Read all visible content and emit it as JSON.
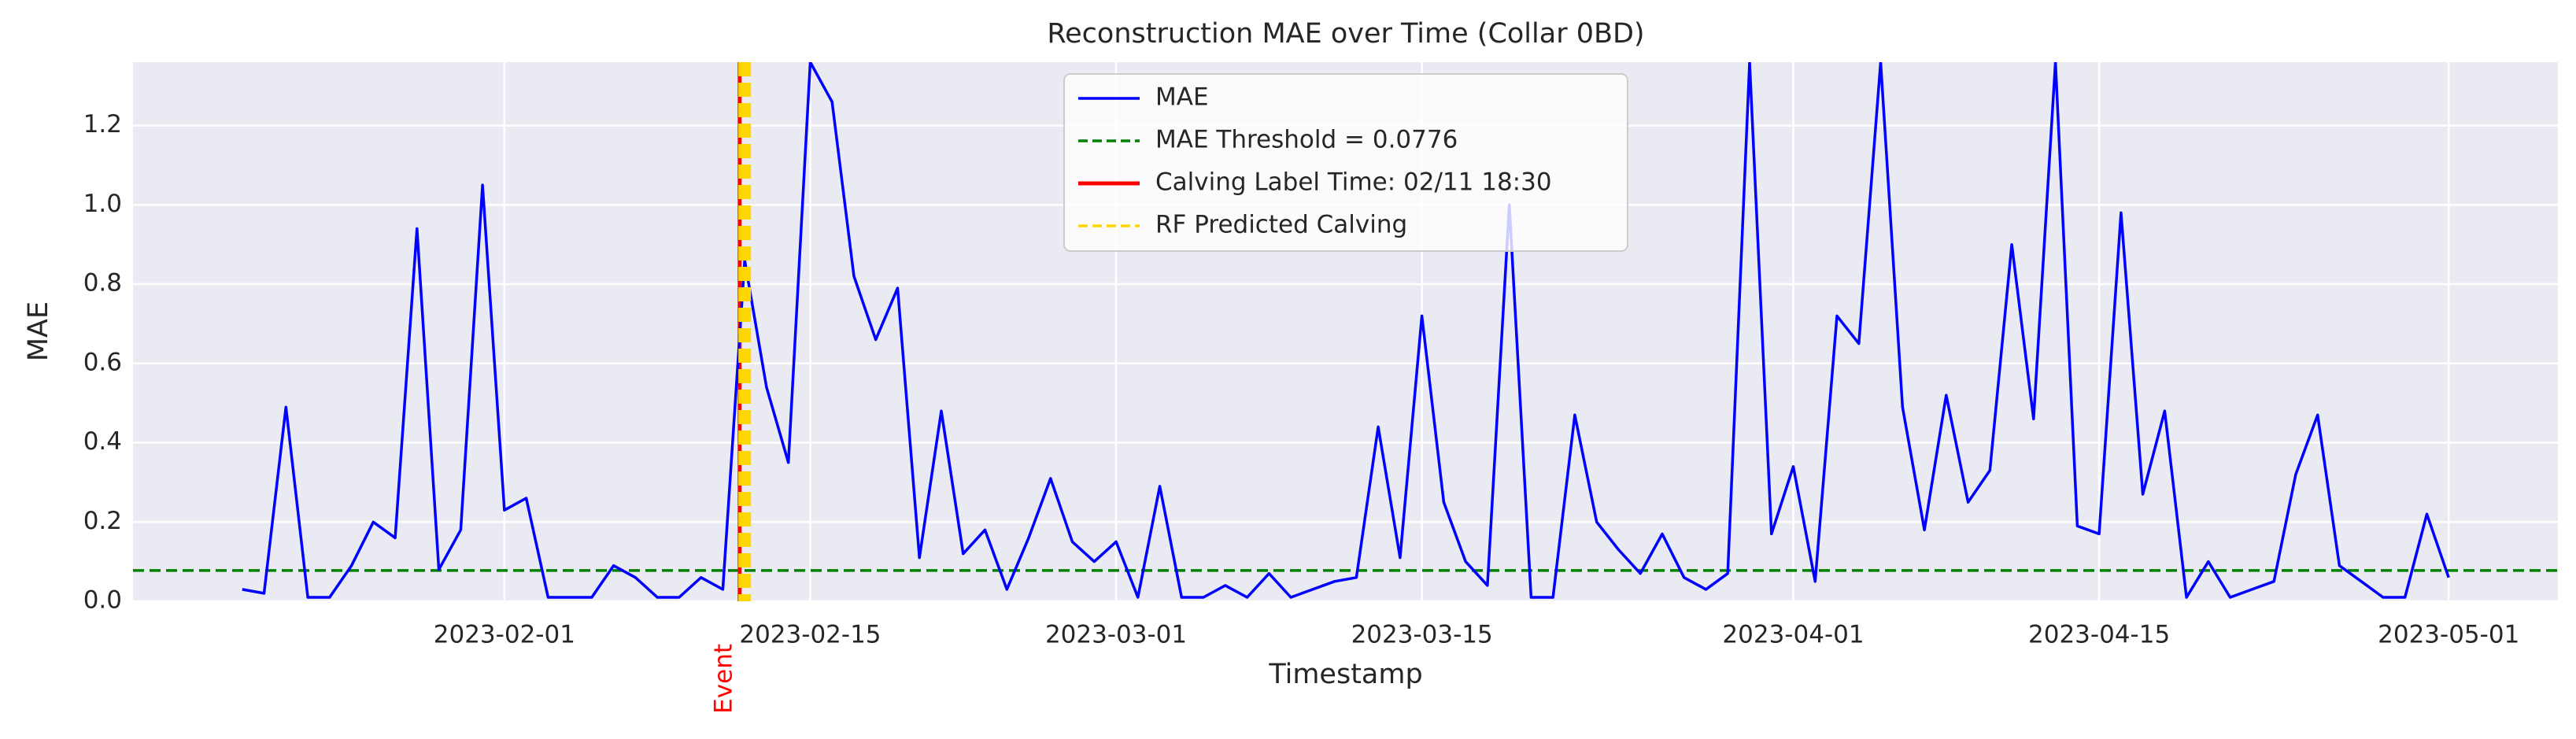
{
  "chart_data": {
    "type": "line",
    "title": "Reconstruction MAE over Time (Collar 0BD)",
    "x_label": "Timestamp",
    "y_label": "MAE",
    "x": [
      "2023-01-20",
      "2023-01-21",
      "2023-01-22",
      "2023-01-23",
      "2023-01-24",
      "2023-01-25",
      "2023-01-26",
      "2023-01-27",
      "2023-01-28",
      "2023-01-29",
      "2023-01-30",
      "2023-01-31",
      "2023-02-01",
      "2023-02-02",
      "2023-02-03",
      "2023-02-04",
      "2023-02-05",
      "2023-02-06",
      "2023-02-07",
      "2023-02-08",
      "2023-02-09",
      "2023-02-10",
      "2023-02-11",
      "2023-02-12",
      "2023-02-13",
      "2023-02-14",
      "2023-02-15",
      "2023-02-16",
      "2023-02-17",
      "2023-02-18",
      "2023-02-19",
      "2023-02-20",
      "2023-02-21",
      "2023-02-22",
      "2023-02-23",
      "2023-02-24",
      "2023-02-25",
      "2023-02-26",
      "2023-02-27",
      "2023-02-28",
      "2023-03-01",
      "2023-03-02",
      "2023-03-03",
      "2023-03-04",
      "2023-03-05",
      "2023-03-06",
      "2023-03-07",
      "2023-03-08",
      "2023-03-09",
      "2023-03-10",
      "2023-03-11",
      "2023-03-12",
      "2023-03-13",
      "2023-03-14",
      "2023-03-15",
      "2023-03-16",
      "2023-03-17",
      "2023-03-18",
      "2023-03-19",
      "2023-03-20",
      "2023-03-21",
      "2023-03-22",
      "2023-03-23",
      "2023-03-24",
      "2023-03-25",
      "2023-03-26",
      "2023-03-27",
      "2023-03-28",
      "2023-03-29",
      "2023-03-30",
      "2023-03-31",
      "2023-04-01",
      "2023-04-02",
      "2023-04-03",
      "2023-04-04",
      "2023-04-05",
      "2023-04-06",
      "2023-04-07",
      "2023-04-08",
      "2023-04-09",
      "2023-04-10",
      "2023-04-11",
      "2023-04-12",
      "2023-04-13",
      "2023-04-14",
      "2023-04-15",
      "2023-04-16",
      "2023-04-17",
      "2023-04-18",
      "2023-04-19",
      "2023-04-20",
      "2023-04-21",
      "2023-04-22",
      "2023-04-23",
      "2023-04-24",
      "2023-04-25",
      "2023-04-26",
      "2023-04-27",
      "2023-04-28",
      "2023-04-29",
      "2023-04-30",
      "2023-05-01"
    ],
    "series": [
      {
        "name": "MAE",
        "color": "blue",
        "values": [
          0.03,
          0.02,
          0.49,
          0.01,
          0.01,
          0.09,
          0.2,
          0.16,
          0.94,
          0.08,
          0.18,
          1.05,
          0.23,
          0.26,
          0.01,
          0.01,
          0.01,
          0.09,
          0.06,
          0.01,
          0.01,
          0.06,
          0.03,
          0.86,
          0.54,
          0.35,
          1.36,
          1.26,
          0.82,
          0.66,
          0.79,
          0.11,
          0.48,
          0.12,
          0.18,
          0.03,
          0.16,
          0.31,
          0.15,
          0.1,
          0.15,
          0.01,
          0.29,
          0.01,
          0.01,
          0.04,
          0.01,
          0.07,
          0.01,
          0.03,
          0.05,
          0.06,
          0.44,
          0.11,
          0.72,
          0.25,
          0.1,
          0.04,
          1.0,
          0.01,
          0.01,
          0.47,
          0.2,
          0.13,
          0.07,
          0.17,
          0.06,
          0.03,
          0.07,
          1.36,
          0.17,
          0.34,
          0.05,
          0.72,
          0.65,
          1.36,
          0.49,
          0.18,
          0.52,
          0.25,
          0.33,
          0.9,
          0.46,
          1.36,
          0.19,
          0.17,
          0.98,
          0.27,
          0.48,
          0.01,
          0.1,
          0.01,
          0.03,
          0.05,
          0.32,
          0.47,
          0.09,
          0.05,
          0.01,
          0.01,
          0.22,
          0.06
        ]
      }
    ],
    "threshold": {
      "name": "MAE Threshold = 0.0776",
      "value": 0.0776,
      "color": "green"
    },
    "calving": {
      "name": "Calving Label Time: 02/11 18:30",
      "x": "2023-02-11T18:30",
      "color": "red",
      "label": "Event"
    },
    "rf_predicted": {
      "name": "RF Predicted Calving",
      "x": [
        "2023-02-12"
      ],
      "color": "gold"
    },
    "xlim": [
      "2023-01-15",
      "2023-05-06"
    ],
    "xticks": [
      "2023-02-01",
      "2023-02-15",
      "2023-03-01",
      "2023-03-15",
      "2023-04-01",
      "2023-04-15",
      "2023-05-01"
    ],
    "ylim": [
      0,
      1.36
    ],
    "yticks": [
      {
        "value": 0,
        "label": "0.0"
      },
      0.2,
      0.4,
      0.6,
      {
        "value": 1,
        "label": "1.0"
      },
      0.8,
      1.2
    ],
    "grid": true,
    "legend": "upper center"
  }
}
